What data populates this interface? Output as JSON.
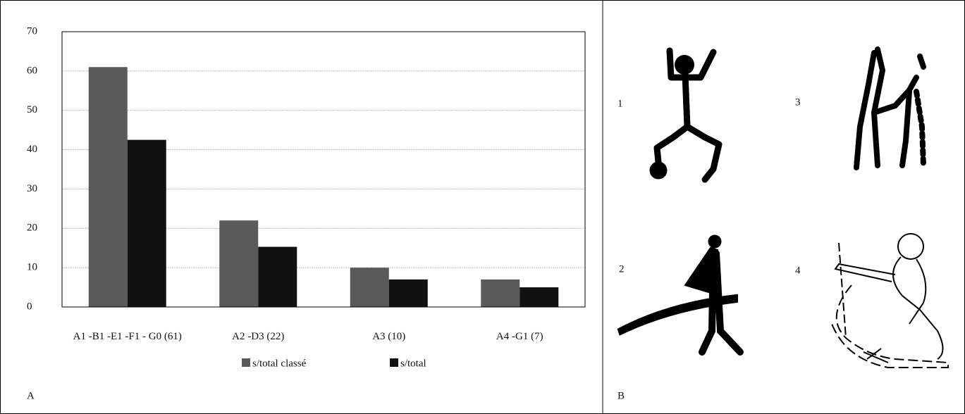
{
  "chart_data": {
    "type": "bar",
    "categories": [
      "A1 -B1 -E1 -F1 - G0 (61)",
      "A2 -D3 (22)",
      "A3 (10)",
      "A4 -G1 (7)"
    ],
    "series": [
      {
        "name": "s/total classé",
        "color": "#5a5a5a",
        "values": [
          61,
          22,
          10,
          7
        ]
      },
      {
        "name": "s/total",
        "color": "#111111",
        "values": [
          42.5,
          15.3,
          7,
          5
        ]
      }
    ],
    "ylim": [
      0,
      70
    ],
    "yticks": [
      0,
      10,
      20,
      30,
      40,
      50,
      60,
      70
    ],
    "grid": true,
    "panel_label": "A"
  },
  "figure": {
    "panel_label": "B",
    "items": [
      "1",
      "2",
      "3",
      "4"
    ]
  }
}
